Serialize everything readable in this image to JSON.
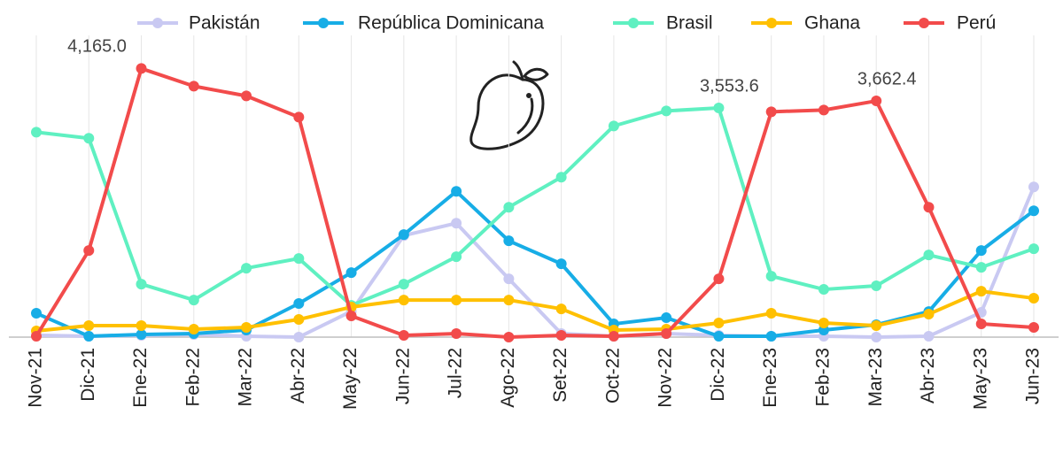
{
  "chart_data": {
    "type": "line",
    "categories": [
      "Nov-21",
      "Dic-21",
      "Ene-22",
      "Feb-22",
      "Mar-22",
      "Abr-22",
      "May-22",
      "Jun-22",
      "Jul-22",
      "Ago-22",
      "Set-22",
      "Oct-22",
      "Nov-22",
      "Dic-22",
      "Ene-23",
      "Feb-23",
      "Mar-23",
      "Abr-23",
      "May-23",
      "Jun-23"
    ],
    "ylim": [
      0,
      4500
    ],
    "grid": true,
    "legend": "top",
    "series": [
      {
        "name": "Pakistán",
        "color": "#c9c9f2",
        "values": [
          30,
          14,
          27,
          41,
          14,
          0,
          400,
          1575,
          1767,
          904,
          55,
          14,
          55,
          27,
          14,
          14,
          0,
          14,
          384,
          2329
        ]
      },
      {
        "name": "República Dominicana",
        "color": "#17ade6",
        "values": [
          370,
          14,
          41,
          55,
          110,
          521,
          1000,
          1589,
          2260,
          1493,
          1137,
          205,
          301,
          14,
          14,
          110,
          192,
          397,
          1343,
          1959
        ]
      },
      {
        "name": "Brasil",
        "color": "#5ff0c1",
        "values": [
          3178,
          3083,
          822,
          575,
          1069,
          1219,
          493,
          822,
          1247,
          2014,
          2480,
          3274,
          3507,
          3553.6,
          945,
          740,
          795,
          1274,
          1082,
          1370
        ],
        "value_labels": [
          null,
          null,
          null,
          null,
          null,
          null,
          null,
          null,
          null,
          null,
          null,
          null,
          null,
          "3,553.6",
          null,
          null,
          null,
          null,
          null,
          null
        ]
      },
      {
        "name": "Ghana",
        "color": "#ffc000",
        "values": [
          96,
          178,
          178,
          123,
          151,
          274,
          466,
          575,
          575,
          575,
          438,
          110,
          123,
          219,
          370,
          219,
          178,
          356,
          712,
          603
        ]
      },
      {
        "name": "Perú",
        "color": "#f24b4b",
        "values": [
          14,
          1343,
          4165.0,
          3891,
          3740,
          3411,
          329,
          27,
          55,
          0,
          27,
          14,
          55,
          904,
          3494,
          3521,
          3662.4,
          2014,
          205,
          151
        ],
        "value_labels": [
          null,
          null,
          "4,165.0",
          null,
          null,
          null,
          null,
          null,
          null,
          null,
          null,
          null,
          null,
          null,
          null,
          null,
          "3,662.4",
          null,
          null,
          null
        ]
      }
    ]
  }
}
